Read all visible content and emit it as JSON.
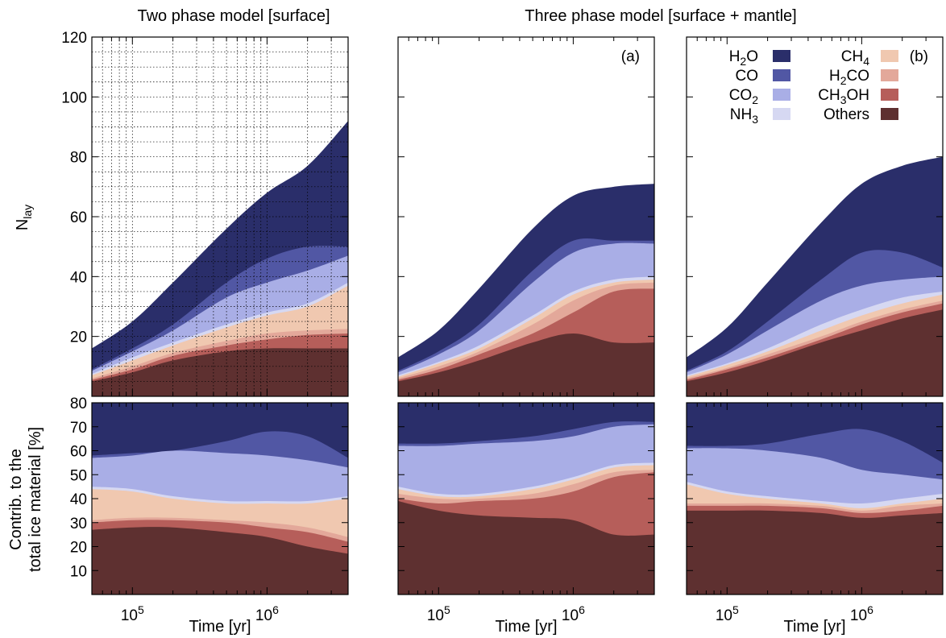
{
  "titles": {
    "left": "Two phase model [surface]",
    "right": "Three phase model [surface + mantle]"
  },
  "labels": {
    "xlabel": "Time [yr]",
    "ylabel_top_main": "N",
    "ylabel_top_sub": "lay",
    "ylabel_bottom_line1": "Contrib. to the",
    "ylabel_bottom_line2": "total ice material [%]",
    "panel_a": "(a)",
    "panel_b": "(b)"
  },
  "legend": [
    {
      "main": "H",
      "sub": "2",
      "rest": "O",
      "color": "#2a2e6a"
    },
    {
      "main": "CO",
      "sub": "",
      "rest": "",
      "color": "#5157a4"
    },
    {
      "main": "CO",
      "sub": "2",
      "rest": "",
      "color": "#a9aee6"
    },
    {
      "main": "NH",
      "sub": "3",
      "rest": "",
      "color": "#d6d8f2"
    },
    {
      "main": "CH",
      "sub": "4",
      "rest": "",
      "color": "#f0c8b0"
    },
    {
      "main": "H",
      "sub": "2",
      "rest": "CO",
      "color": "#e3a89a"
    },
    {
      "main": "CH",
      "sub": "3",
      "rest": "OH",
      "color": "#b65e5a"
    },
    {
      "main": "Others",
      "sub": "",
      "rest": "",
      "color": "#5e3030"
    }
  ],
  "chart_data": {
    "type": "area",
    "x_scale": "log",
    "xlim": [
      50000,
      4000000
    ],
    "x_ticks": [
      {
        "value": 100000,
        "base": "10",
        "exp": "5"
      },
      {
        "value": 1000000,
        "base": "10",
        "exp": "6"
      }
    ],
    "y_top": {
      "ylim": [
        0,
        120
      ],
      "ticks": [
        20,
        40,
        60,
        80,
        100,
        120
      ]
    },
    "y_bottom": {
      "ylim": [
        0,
        80
      ],
      "ticks": [
        10,
        20,
        30,
        40,
        50,
        60,
        70,
        80
      ]
    },
    "grid": "dotted, top-left panel only",
    "x": [
      50000,
      100000,
      200000,
      500000,
      1000000,
      2000000,
      4000000
    ],
    "stack_order_bottom_to_top": [
      "Others",
      "CH3OH",
      "H2CO",
      "CH4",
      "NH3",
      "CO2",
      "CO",
      "H2O"
    ],
    "panels": [
      {
        "name": "two-phase-surface",
        "top_cumulative": {
          "Others": [
            5,
            8,
            12,
            15,
            16,
            16,
            16
          ],
          "CH3OH": [
            5.5,
            9,
            13.5,
            17,
            19,
            20.5,
            21
          ],
          "H2CO": [
            6,
            10,
            14.5,
            18.5,
            21,
            22,
            22.5
          ],
          "CH4": [
            7,
            12,
            17,
            23,
            27,
            30,
            37
          ],
          "NH3": [
            7.5,
            13,
            18,
            24,
            28,
            31,
            38
          ],
          "CO2": [
            8.5,
            15,
            22,
            33,
            38,
            42,
            47
          ],
          "CO": [
            9,
            16,
            24,
            38,
            46,
            50,
            50
          ],
          "H2O": [
            16,
            25,
            38,
            56,
            68,
            77,
            92
          ]
        },
        "bottom_cumulative": {
          "Others": [
            27,
            28,
            28,
            26,
            24,
            20,
            17
          ],
          "CH3OH": [
            30,
            31,
            31,
            30,
            28,
            26,
            22
          ],
          "H2CO": [
            31,
            32,
            32,
            31,
            30,
            28,
            24
          ],
          "CH4": [
            44,
            43,
            40,
            38,
            38,
            38,
            40
          ],
          "NH3": [
            45,
            44,
            41,
            39,
            39,
            39,
            41
          ],
          "CO2": [
            57,
            58,
            60,
            59,
            58,
            56,
            53
          ],
          "CO": [
            58,
            59,
            60,
            64,
            68,
            66,
            57
          ],
          "H2O": [
            80,
            80,
            80,
            80,
            80,
            80,
            80
          ]
        }
      },
      {
        "name": "three-phase-a",
        "label": "(a)",
        "top_cumulative": {
          "Others": [
            5,
            8,
            12,
            18,
            21,
            18,
            18
          ],
          "CH3OH": [
            5.5,
            9,
            14,
            21,
            28,
            35,
            36
          ],
          "H2CO": [
            6,
            10,
            15,
            24,
            32,
            37,
            38
          ],
          "CH4": [
            6.5,
            11,
            16,
            26,
            34,
            38,
            39
          ],
          "NH3": [
            7,
            11.5,
            17,
            27,
            35,
            39,
            40
          ],
          "CO2": [
            8,
            14,
            22,
            38,
            48,
            51,
            51
          ],
          "CO": [
            8.5,
            15,
            24,
            42,
            52,
            52,
            52
          ],
          "H2O": [
            13,
            22,
            36,
            56,
            67,
            70,
            71
          ]
        },
        "bottom_cumulative": {
          "Others": [
            39,
            35,
            33,
            32,
            31,
            25,
            25
          ],
          "CH3OH": [
            40,
            38,
            39,
            40,
            43,
            49,
            51
          ],
          "H2CO": [
            42,
            40,
            40,
            42,
            46,
            51,
            52
          ],
          "CH4": [
            44,
            41,
            41,
            44,
            48,
            53,
            54
          ],
          "NH3": [
            45,
            42,
            42,
            45,
            49,
            54,
            55
          ],
          "CO2": [
            62,
            62,
            63,
            64,
            66,
            70,
            71
          ],
          "CO": [
            63,
            63,
            64,
            66,
            69,
            72,
            72
          ],
          "H2O": [
            80,
            80,
            80,
            80,
            80,
            80,
            80
          ]
        }
      },
      {
        "name": "three-phase-b",
        "label": "(b)",
        "top_cumulative": {
          "Others": [
            5,
            8,
            12,
            18,
            22,
            26,
            29
          ],
          "CH3OH": [
            5.5,
            9,
            13,
            19,
            24,
            28,
            31
          ],
          "H2CO": [
            6,
            9.5,
            14,
            20,
            25,
            29,
            32
          ],
          "CH4": [
            6.5,
            10.5,
            15,
            22,
            27,
            31,
            34
          ],
          "NH3": [
            7,
            11,
            16,
            24,
            29,
            33,
            35
          ],
          "CO2": [
            8,
            14,
            22,
            32,
            37,
            39,
            40
          ],
          "CO": [
            8.5,
            15,
            25,
            39,
            48,
            48,
            43
          ],
          "H2O": [
            13,
            23,
            38,
            58,
            71,
            77,
            80
          ]
        },
        "bottom_cumulative": {
          "Others": [
            35,
            35,
            35,
            34,
            32,
            33,
            34
          ],
          "CH3OH": [
            37,
            37,
            37,
            36,
            34,
            35,
            37
          ],
          "H2CO": [
            38,
            38,
            38,
            37,
            35,
            37,
            38
          ],
          "CH4": [
            46,
            42,
            40,
            38,
            36,
            38,
            40
          ],
          "NH3": [
            47,
            43,
            41,
            39,
            38,
            40,
            42
          ],
          "CO2": [
            61,
            61,
            60,
            57,
            52,
            50,
            48
          ],
          "CO": [
            62,
            62,
            63,
            67,
            69,
            64,
            55
          ],
          "H2O": [
            80,
            80,
            80,
            80,
            80,
            80,
            80
          ]
        }
      }
    ]
  }
}
